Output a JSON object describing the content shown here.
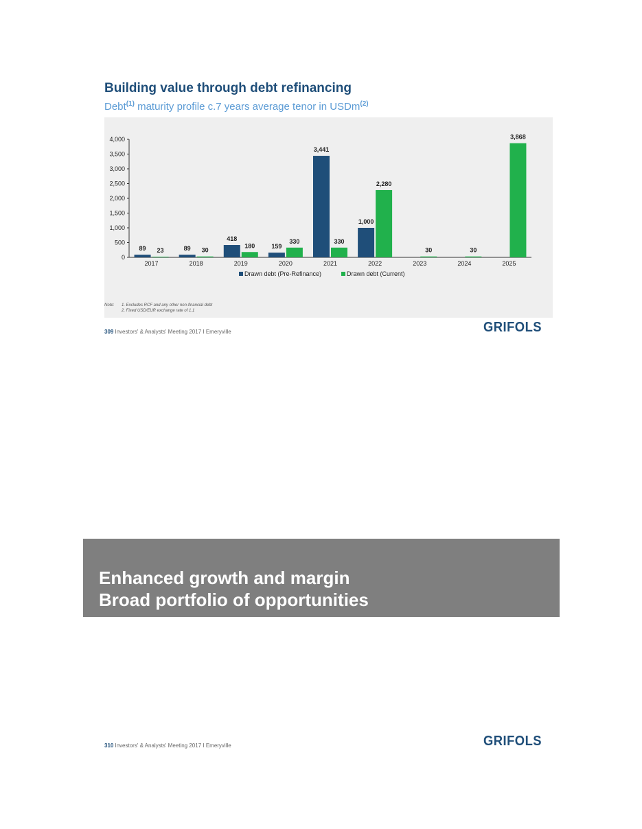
{
  "slide1": {
    "title": "Building value through debt refinancing",
    "subtitle_pre": "Debt",
    "subtitle_sup1": "(1)",
    "subtitle_mid": " maturity profile c.7 years average tenor in USDm",
    "subtitle_sup2": "(2)",
    "note_label": "Note:",
    "note_lines": [
      "1. Excludes RCF and any other non-financial debt",
      "2. Fixed USD/EUR exchange rate of 1.1"
    ],
    "footer_page": "309",
    "footer_text": "Investors' & Analysts' Meeting 2017 I Emeryville",
    "logo": "GRIFOLS"
  },
  "slide2": {
    "title_line1": "Enhanced growth and margin",
    "title_line2": "Broad portfolio of opportunities",
    "footer_page": "310",
    "footer_text": "Investors' & Analysts' Meeting 2017 I Emeryville",
    "logo": "GRIFOLS"
  },
  "chart_data": {
    "type": "bar",
    "categories": [
      "2017",
      "2018",
      "2019",
      "2020",
      "2021",
      "2022",
      "2023",
      "2024",
      "2025"
    ],
    "series": [
      {
        "name": "Drawn debt (Pre-Refinance)",
        "color": "#1f4e79",
        "values": [
          89,
          89,
          418,
          159,
          3441,
          1000,
          null,
          null,
          null
        ]
      },
      {
        "name": "Drawn debt (Current)",
        "color": "#21b14c",
        "values": [
          23,
          30,
          180,
          330,
          330,
          2280,
          30,
          30,
          3868
        ]
      }
    ],
    "data_labels": {
      "Drawn debt (Pre-Refinance)": [
        "89",
        "89",
        "418",
        "159",
        "3,441",
        "1,000",
        "",
        "",
        ""
      ],
      "Drawn debt (Current)": [
        "23",
        "30",
        "180",
        "330",
        "330",
        "2,280",
        "30",
        "30",
        "3,868"
      ]
    },
    "y_ticks": [
      0,
      500,
      1000,
      1500,
      2000,
      2500,
      3000,
      3500,
      4000
    ],
    "y_tick_labels": [
      "0",
      "500",
      "1,000",
      "1,500",
      "2,000",
      "2,500",
      "3,000",
      "3,500",
      "4,000"
    ],
    "ylim": [
      0,
      4000
    ],
    "legend_position": "bottom",
    "grid": false
  }
}
